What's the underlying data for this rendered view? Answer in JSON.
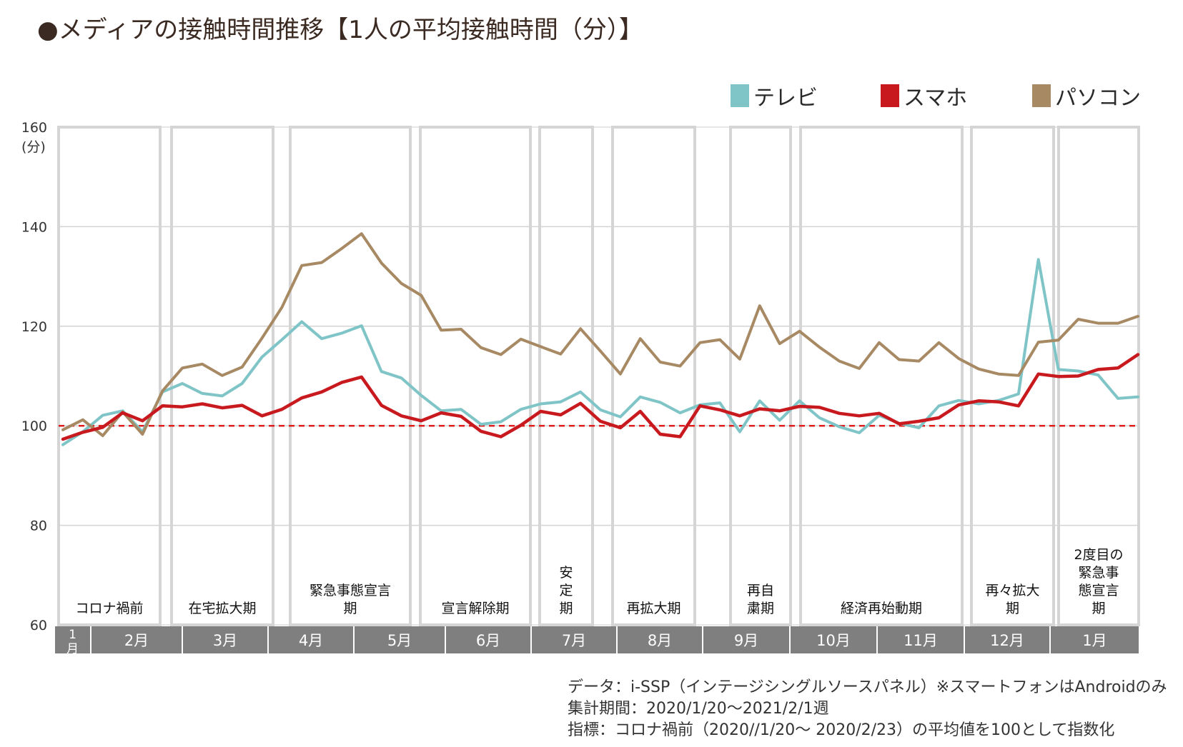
{
  "title": "●メディアの接触時間推移【1人の平均接触時間（分）】",
  "legend": [
    {
      "name": "テレビ",
      "color": "#7fc4c6"
    },
    {
      "name": "スマホ",
      "color": "#c8191e"
    },
    {
      "name": "パソコン",
      "color": "#a78963"
    }
  ],
  "footnote": {
    "line1": "データ：i-SSP（インテージシングルソースパネル）※スマートフォンはAndroidのみ",
    "line2": "集計期間：2020/1/20〜2021/2/1週",
    "line3": "指標：コロナ禍前（2020//1/20〜 2020/2/23）の平均値を100として指数化"
  },
  "chart_data": {
    "type": "line",
    "ylim": [
      60,
      160
    ],
    "yticks": [
      60,
      80,
      100,
      120,
      140,
      160
    ],
    "yunit": "(分)",
    "baseline": 100,
    "months": [
      "1月",
      "2月",
      "3月",
      "4月",
      "5月",
      "6月",
      "7月",
      "8月",
      "9月",
      "10月",
      "11月",
      "12月",
      "1月"
    ],
    "periods": [
      {
        "label": "コロナ禍前"
      },
      {
        "label": "在宅拡大期"
      },
      {
        "label": "緊急事態宣言期"
      },
      {
        "label": "宣言解除期"
      },
      {
        "label": "安定期"
      },
      {
        "label": "再拡大期"
      },
      {
        "label": "再自粛期"
      },
      {
        "label": "経済再始動期"
      },
      {
        "label": "再々拡大期"
      },
      {
        "label": "2度目の緊急事態宣言期"
      }
    ],
    "series": [
      {
        "name": "テレビ",
        "color": "#7fc4c6",
        "values": [
          96.2,
          98.8,
          102.1,
          103.0,
          98.8,
          106.8,
          108.5,
          106.5,
          106.0,
          108.5,
          113.8,
          117.3,
          120.9,
          117.5,
          118.6,
          120.1,
          110.9,
          109.6,
          106.1,
          103.0,
          103.3,
          100.3,
          100.8,
          103.3,
          104.4,
          104.8,
          106.8,
          103.2,
          101.8,
          105.8,
          104.7,
          102.6,
          104.2,
          104.6,
          98.8,
          105.0,
          101.1,
          105.0,
          101.6,
          99.8,
          98.6,
          102.1,
          100.5,
          99.6,
          104.0,
          105.1,
          104.4,
          105.1,
          106.4,
          133.4,
          111.3,
          111.0,
          110.2,
          105.5,
          105.8
        ]
      },
      {
        "name": "スマホ",
        "color": "#c8191e",
        "values": [
          97.3,
          98.7,
          99.7,
          102.6,
          101.0,
          104.0,
          103.8,
          104.4,
          103.6,
          104.1,
          102.0,
          103.3,
          105.6,
          106.8,
          108.7,
          109.8,
          104.1,
          102.0,
          101.0,
          102.6,
          101.9,
          98.9,
          97.8,
          100.1,
          102.9,
          102.2,
          104.5,
          100.9,
          99.6,
          102.9,
          98.3,
          97.8,
          104.0,
          103.2,
          102.0,
          103.4,
          103.0,
          103.9,
          103.7,
          102.5,
          102.0,
          102.5,
          100.4,
          100.9,
          101.6,
          104.2,
          105.0,
          104.8,
          104.0,
          110.4,
          109.9,
          110.0,
          111.3,
          111.6,
          114.3
        ]
      },
      {
        "name": "パソコン",
        "color": "#a78963",
        "values": [
          99.2,
          101.2,
          98.0,
          102.8,
          98.3,
          107.0,
          111.6,
          112.4,
          110.1,
          111.8,
          117.6,
          123.8,
          132.2,
          132.8,
          135.6,
          138.6,
          132.7,
          128.6,
          126.2,
          119.2,
          119.4,
          115.7,
          114.3,
          117.4,
          115.9,
          114.4,
          119.5,
          115.0,
          110.4,
          117.5,
          112.8,
          112.0,
          116.7,
          117.3,
          113.4,
          124.1,
          116.5,
          119.0,
          115.8,
          113.0,
          111.5,
          116.7,
          113.3,
          113.0,
          116.7,
          113.5,
          111.4,
          110.4,
          110.1,
          116.8,
          117.2,
          121.4,
          120.6,
          120.6,
          122.0
        ]
      }
    ]
  }
}
